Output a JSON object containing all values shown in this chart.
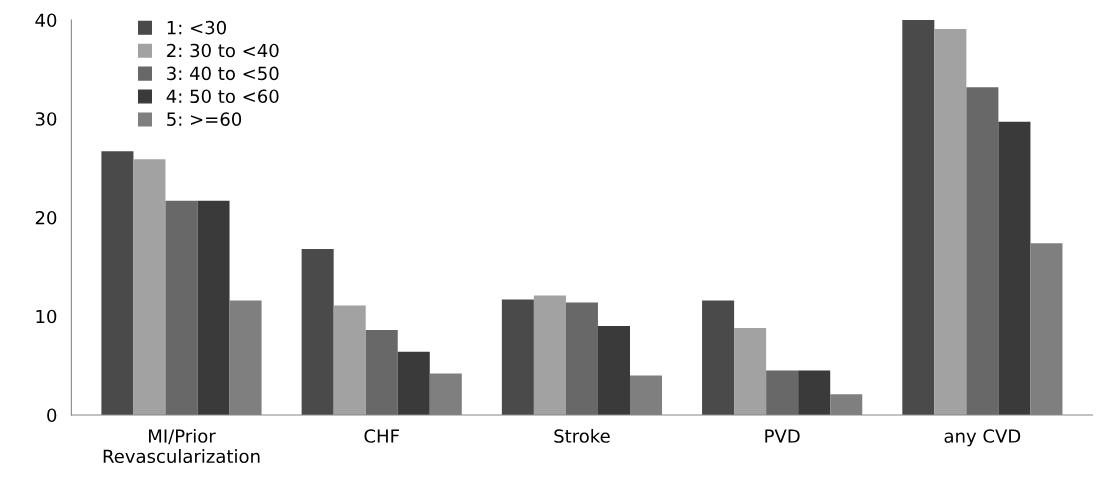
{
  "chart_data": {
    "type": "bar",
    "categories": [
      "MI/Prior\nRevascularization",
      "CHF",
      "Stroke",
      "PVD",
      "any CVD"
    ],
    "series": [
      {
        "name": "1: <30",
        "color": "#4a4a4a",
        "values": [
          26.7,
          16.8,
          11.7,
          11.6,
          40.0
        ]
      },
      {
        "name": "2: 30 to <40",
        "color": "#a2a2a2",
        "values": [
          25.9,
          11.1,
          12.1,
          8.8,
          39.1
        ]
      },
      {
        "name": "3: 40 to <50",
        "color": "#686868",
        "values": [
          21.7,
          8.6,
          11.4,
          4.5,
          33.2
        ]
      },
      {
        "name": "4: 50 to <60",
        "color": "#3a3a3a",
        "values": [
          21.7,
          6.4,
          9.0,
          4.5,
          29.7
        ]
      },
      {
        "name": "5: >=60",
        "color": "#7f7f7f",
        "values": [
          11.6,
          4.2,
          4.0,
          2.1,
          17.4
        ]
      }
    ],
    "ylim": [
      0,
      40
    ],
    "yticks": [
      0,
      10,
      20,
      30,
      40
    ],
    "grid": false,
    "legend": "top left"
  }
}
